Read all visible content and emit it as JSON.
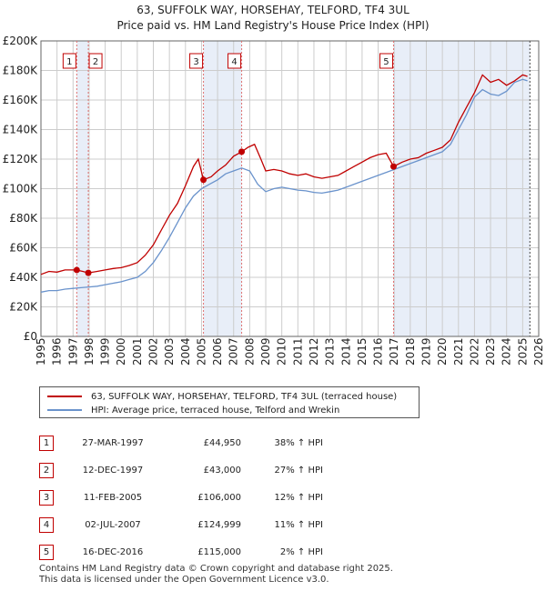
{
  "title_line1": "63, SUFFOLK WAY, HORSEHAY, TELFORD, TF4 3UL",
  "title_line2": "Price paid vs. HM Land Registry's House Price Index (HPI)",
  "colors": {
    "price_line": "#c00000",
    "hpi_line": "#6a93cc",
    "band": "#e8eef8",
    "grid": "#cccccc"
  },
  "chart_data": {
    "type": "line",
    "title": "63, SUFFOLK WAY, HORSEHAY, TELFORD, TF4 3UL — Price paid vs. HM Land Registry's House Price Index (HPI)",
    "xlim": [
      1995,
      2026
    ],
    "ylim": [
      0,
      200000
    ],
    "x_ticks": [
      "1995",
      "1996",
      "1997",
      "1998",
      "1999",
      "2000",
      "2001",
      "2002",
      "2003",
      "2004",
      "2005",
      "2006",
      "2007",
      "2008",
      "2009",
      "2010",
      "2011",
      "2012",
      "2013",
      "2014",
      "2015",
      "2016",
      "2017",
      "2018",
      "2019",
      "2020",
      "2021",
      "2022",
      "2023",
      "2024",
      "2025",
      "2026"
    ],
    "y_ticks": [
      {
        "value": 0,
        "label": "£0"
      },
      {
        "value": 20000,
        "label": "£20K"
      },
      {
        "value": 40000,
        "label": "£40K"
      },
      {
        "value": 60000,
        "label": "£60K"
      },
      {
        "value": 80000,
        "label": "£80K"
      },
      {
        "value": 100000,
        "label": "£100K"
      },
      {
        "value": 120000,
        "label": "£120K"
      },
      {
        "value": 140000,
        "label": "£140K"
      },
      {
        "value": 160000,
        "label": "£160K"
      },
      {
        "value": 180000,
        "label": "£180K"
      },
      {
        "value": 200000,
        "label": "£200K"
      }
    ],
    "series": [
      {
        "name": "63, SUFFOLK WAY, HORSEHAY, TELFORD, TF4 3UL (terraced house)",
        "color": "#c00000",
        "x": [
          1995.0,
          1995.5,
          1996.0,
          1996.5,
          1997.0,
          1997.23,
          1997.6,
          1997.95,
          1998.5,
          1999.0,
          1999.5,
          2000.0,
          2000.5,
          2001.0,
          2001.5,
          2002.0,
          2002.5,
          2003.0,
          2003.5,
          2004.0,
          2004.5,
          2004.8,
          2005.12,
          2005.6,
          2006.0,
          2006.5,
          2007.0,
          2007.5,
          2007.9,
          2008.3,
          2008.7,
          2009.0,
          2009.5,
          2010.0,
          2010.5,
          2011.0,
          2011.5,
          2012.0,
          2012.5,
          2013.0,
          2013.5,
          2014.0,
          2014.5,
          2015.0,
          2015.5,
          2016.0,
          2016.5,
          2016.96,
          2017.5,
          2018.0,
          2018.5,
          2019.0,
          2019.5,
          2020.0,
          2020.5,
          2021.0,
          2021.5,
          2022.0,
          2022.5,
          2023.0,
          2023.5,
          2024.0,
          2024.5,
          2025.0,
          2025.3
        ],
        "y": [
          42000,
          44000,
          43500,
          45000,
          45000,
          44950,
          44000,
          43000,
          44000,
          45000,
          46000,
          46500,
          48000,
          50000,
          55000,
          62000,
          72000,
          82000,
          90000,
          102000,
          115000,
          120000,
          106000,
          108000,
          112000,
          116000,
          122000,
          124999,
          128000,
          130000,
          120000,
          112000,
          113000,
          112000,
          110000,
          109000,
          110000,
          108000,
          107000,
          108000,
          109000,
          112000,
          115000,
          118000,
          121000,
          123000,
          124000,
          115000,
          118000,
          120000,
          121000,
          124000,
          126000,
          128000,
          133000,
          145000,
          155000,
          165000,
          177000,
          172000,
          174000,
          170000,
          173000,
          177000,
          176000
        ]
      },
      {
        "name": "HPI: Average price, terraced house, Telford and Wrekin",
        "color": "#6a93cc",
        "x": [
          1995.0,
          1995.5,
          1996.0,
          1996.5,
          1997.0,
          1997.5,
          1998.0,
          1998.5,
          1999.0,
          1999.5,
          2000.0,
          2000.5,
          2001.0,
          2001.5,
          2002.0,
          2002.5,
          2003.0,
          2003.5,
          2004.0,
          2004.5,
          2005.0,
          2005.5,
          2006.0,
          2006.5,
          2007.0,
          2007.5,
          2008.0,
          2008.5,
          2009.0,
          2009.5,
          2010.0,
          2010.5,
          2011.0,
          2011.5,
          2012.0,
          2012.5,
          2013.0,
          2013.5,
          2014.0,
          2014.5,
          2015.0,
          2015.5,
          2016.0,
          2016.5,
          2017.0,
          2017.5,
          2018.0,
          2018.5,
          2019.0,
          2019.5,
          2020.0,
          2020.5,
          2021.0,
          2021.5,
          2022.0,
          2022.5,
          2023.0,
          2023.5,
          2024.0,
          2024.5,
          2025.0,
          2025.3
        ],
        "y": [
          30000,
          31000,
          31000,
          32000,
          32500,
          33000,
          33500,
          34000,
          35000,
          36000,
          37000,
          38500,
          40000,
          44000,
          50000,
          58000,
          67000,
          77000,
          87000,
          95000,
          100000,
          103000,
          106000,
          110000,
          112000,
          114000,
          112000,
          103000,
          98000,
          100000,
          101000,
          100000,
          99000,
          98500,
          97500,
          97000,
          98000,
          99000,
          101000,
          103000,
          105000,
          107000,
          109000,
          111000,
          113000,
          115000,
          117000,
          119000,
          121000,
          123000,
          125000,
          130000,
          140000,
          150000,
          162000,
          167000,
          164000,
          163000,
          166000,
          172000,
          174000,
          173000
        ]
      }
    ],
    "sales": [
      {
        "label": "1",
        "x": 1997.23,
        "price": 44950
      },
      {
        "label": "2",
        "x": 1997.95,
        "price": 43000
      },
      {
        "label": "3",
        "x": 2005.12,
        "price": 106000
      },
      {
        "label": "4",
        "x": 2007.5,
        "price": 124999
      },
      {
        "label": "5",
        "x": 2016.96,
        "price": 115000
      }
    ]
  },
  "legend": {
    "price_label": "63, SUFFOLK WAY, HORSEHAY, TELFORD, TF4 3UL (terraced house)",
    "hpi_label": "HPI: Average price, terraced house, Telford and Wrekin"
  },
  "table": [
    {
      "num": "1",
      "date": "27-MAR-1997",
      "price": "£44,950",
      "hpi": "38% ↑ HPI"
    },
    {
      "num": "2",
      "date": "12-DEC-1997",
      "price": "£43,000",
      "hpi": "27% ↑ HPI"
    },
    {
      "num": "3",
      "date": "11-FEB-2005",
      "price": "£106,000",
      "hpi": "12% ↑ HPI"
    },
    {
      "num": "4",
      "date": "02-JUL-2007",
      "price": "£124,999",
      "hpi": "11% ↑ HPI"
    },
    {
      "num": "5",
      "date": "16-DEC-2016",
      "price": "£115,000",
      "hpi": "2% ↑ HPI"
    }
  ],
  "footer_line1": "Contains HM Land Registry data © Crown copyright and database right 2025.",
  "footer_line2": "This data is licensed under the Open Government Licence v3.0."
}
